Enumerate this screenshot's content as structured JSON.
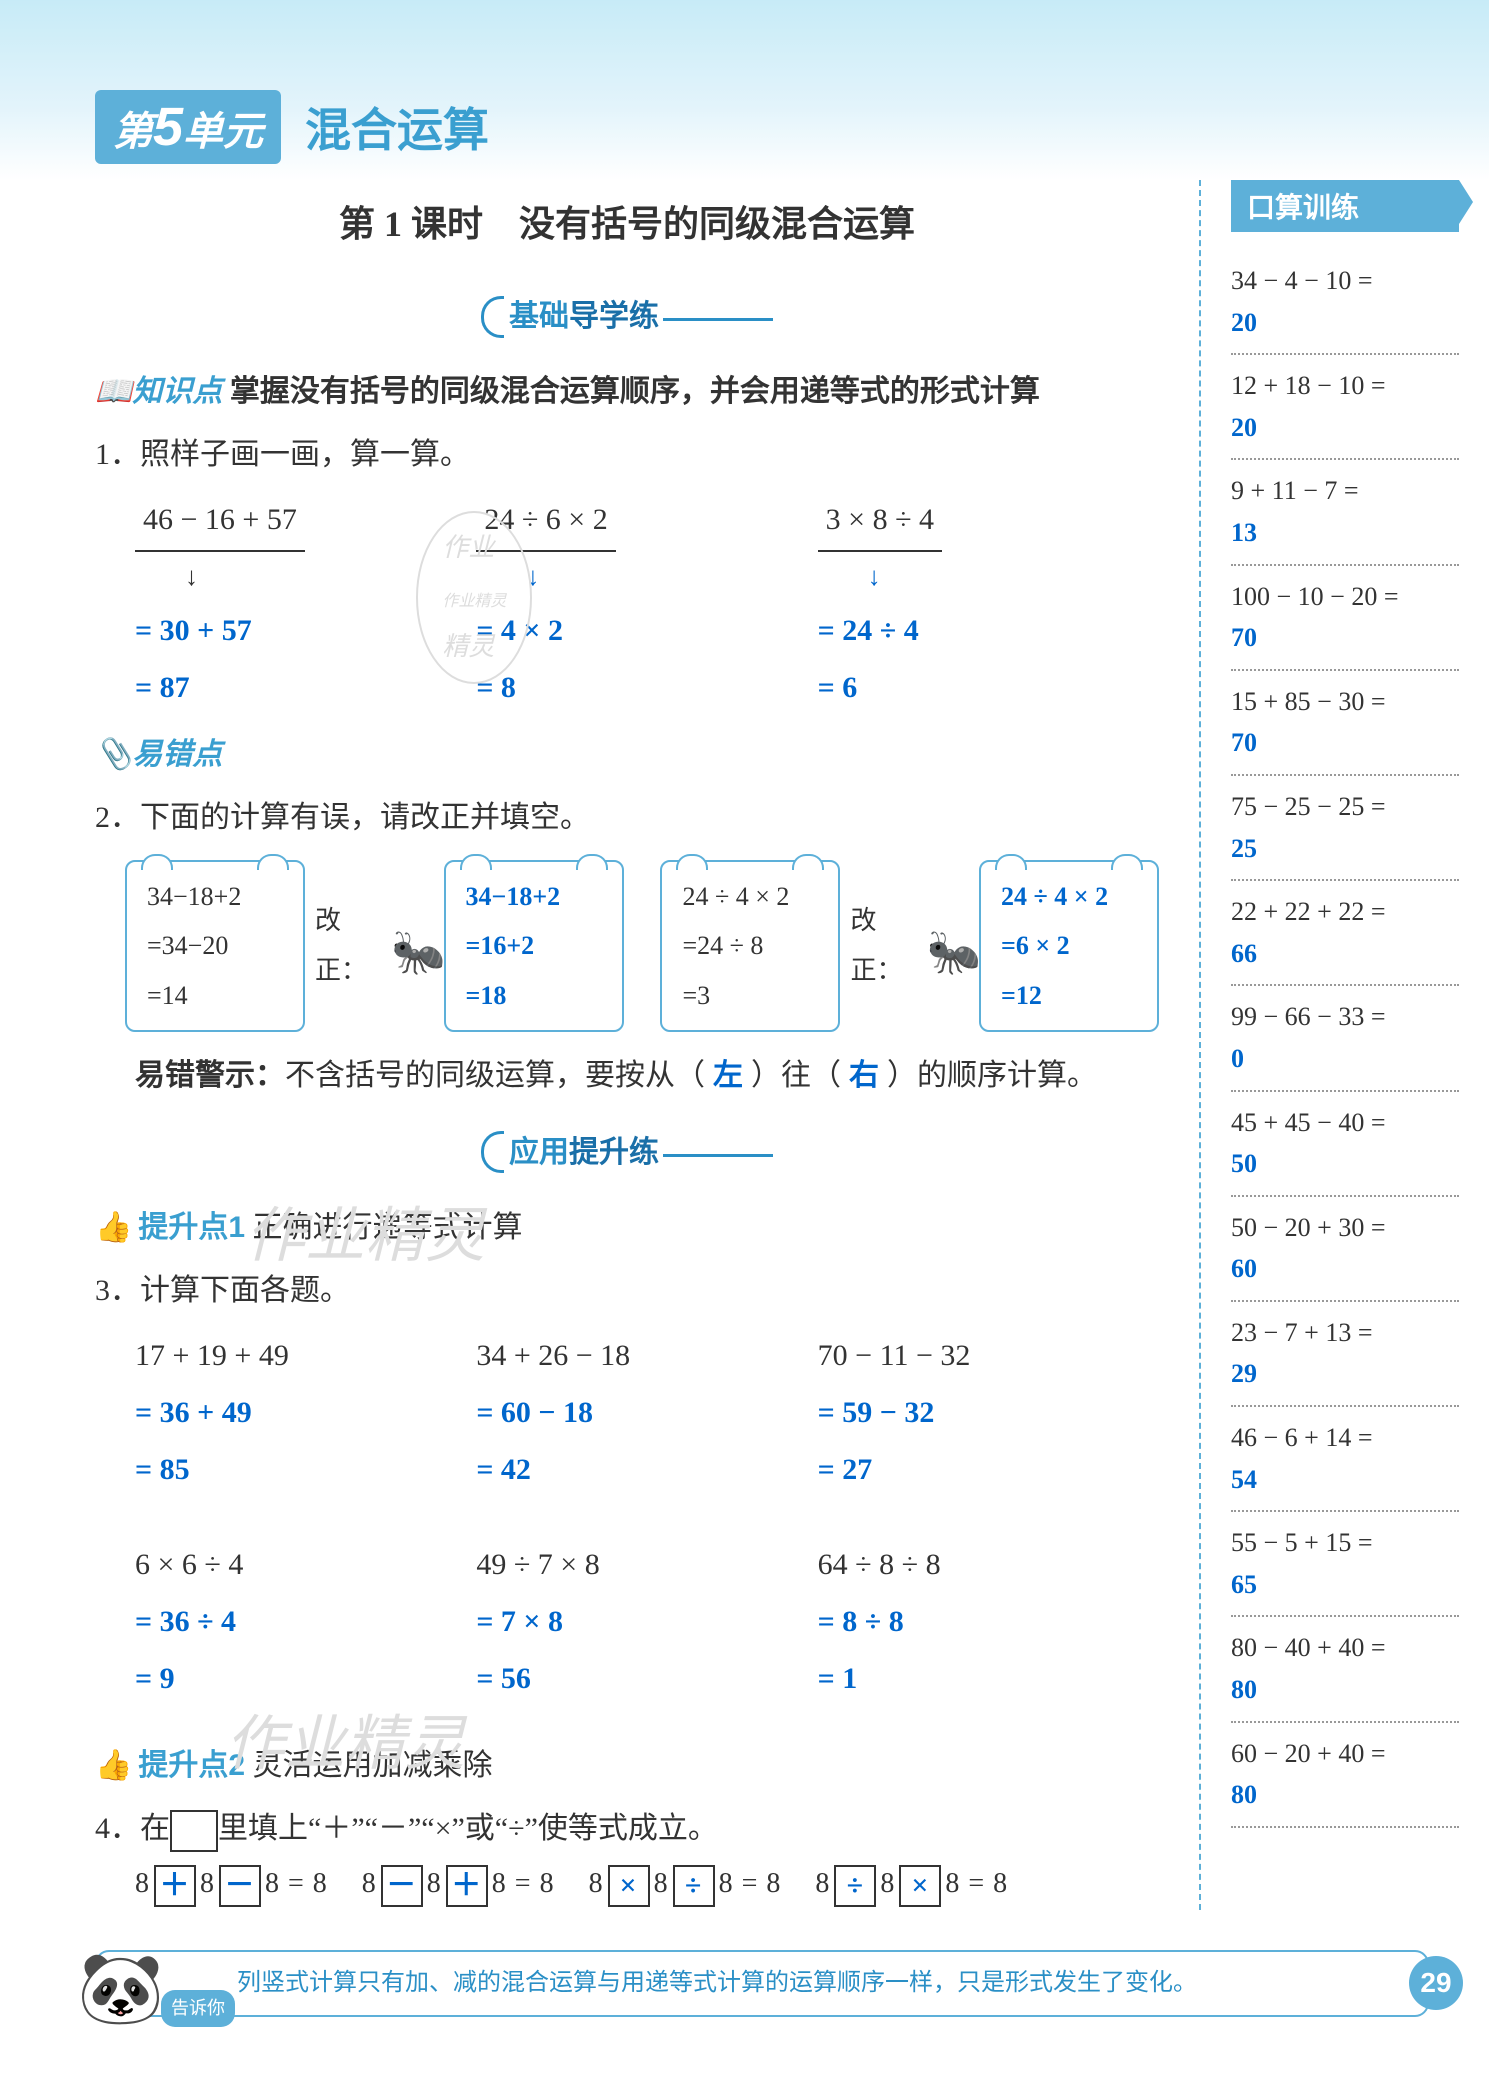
{
  "unit": {
    "badge_prefix": "第",
    "badge_num": "5",
    "badge_suffix": "单元",
    "title": "混合运算"
  },
  "lesson_title": "第 1 课时　没有括号的同级混合运算",
  "banner1_a": "基础",
  "banner1_b": "导学练",
  "kp_label": "知识点",
  "kp_text": "掌握没有括号的同级混合运算顺序，并会用递等式的形式计算",
  "q1": {
    "stem": "1．照样子画一画，算一算。",
    "cols": [
      {
        "expr": "46 − 16 + 57",
        "s1": "= 30 + 57",
        "s2": "= 87"
      },
      {
        "expr": "24 ÷ 6 × 2",
        "s1": "= 4 × 2",
        "s2": "= 8"
      },
      {
        "expr": "3 × 8 ÷ 4",
        "s1": "= 24 ÷ 4",
        "s2": "= 6"
      }
    ]
  },
  "err_label": "易错点",
  "q2": {
    "stem": "2．下面的计算有误，请改正并填空。",
    "gz": "改正：",
    "left": {
      "wrong": [
        "34−18+2",
        "=34−20",
        "=14"
      ],
      "right": [
        "34−18+2",
        "=16+2",
        "=18"
      ]
    },
    "right": {
      "wrong": [
        "24 ÷ 4 × 2",
        "=24 ÷ 8",
        "=3"
      ],
      "right": [
        "24 ÷ 4 × 2",
        "=6 × 2",
        "=12"
      ]
    },
    "warn_a": "易错警示：",
    "warn_b": "不含括号的同级运算，要按从（",
    "warn_fill1": "左",
    "warn_c": "）往（",
    "warn_fill2": "右",
    "warn_d": "）的顺序计算。"
  },
  "banner2_a": "应用",
  "banner2_b": "提升练",
  "tip1_label": "提升点1",
  "tip1_text": "正确进行递等式计算",
  "q3": {
    "stem": "3．计算下面各题。",
    "rows": [
      [
        {
          "e": "17 + 19 + 49",
          "s1": "= 36 + 49",
          "s2": "= 85"
        },
        {
          "e": "34 + 26 − 18",
          "s1": "= 60 − 18",
          "s2": "= 42"
        },
        {
          "e": "70 − 11 − 32",
          "s1": "= 59 − 32",
          "s2": "= 27"
        }
      ],
      [
        {
          "e": "6 × 6 ÷ 4",
          "s1": "= 36 ÷ 4",
          "s2": "= 9"
        },
        {
          "e": "49 ÷ 7 × 8",
          "s1": "= 7 × 8",
          "s2": "= 56"
        },
        {
          "e": "64 ÷ 8 ÷ 8",
          "s1": "= 8 ÷ 8",
          "s2": "= 1"
        }
      ]
    ]
  },
  "tip2_label": "提升点2",
  "tip2_text": "灵活运用加减乘除",
  "q4": {
    "stem_a": "4．在",
    "stem_b": "里填上“＋”“－”“×”或“÷”使等式成立。",
    "exprs": [
      {
        "a": "8",
        "op1": "＋",
        "b": "8",
        "op2": "－",
        "c": "8 = 8"
      },
      {
        "a": "8",
        "op1": "－",
        "b": "8",
        "op2": "＋",
        "c": "8 = 8"
      },
      {
        "a": "8",
        "op1": "×",
        "b": "8",
        "op2": "÷",
        "c": "8 = 8"
      },
      {
        "a": "8",
        "op1": "÷",
        "b": "8",
        "op2": "×",
        "c": "8 = 8"
      }
    ]
  },
  "sidebar": {
    "title": "口算训练",
    "items": [
      {
        "q": "34 − 4 − 10 =",
        "a": "20"
      },
      {
        "q": "12 + 18 − 10 =",
        "a": "20"
      },
      {
        "q": "9 + 11 − 7 =",
        "a": "13"
      },
      {
        "q": "100 − 10 − 20 =",
        "a": "70"
      },
      {
        "q": "15 + 85 − 30 =",
        "a": "70"
      },
      {
        "q": "75 − 25 − 25 =",
        "a": "25"
      },
      {
        "q": "22 + 22 + 22 =",
        "a": "66"
      },
      {
        "q": "99 − 66 − 33 =",
        "a": "0"
      },
      {
        "q": "45 + 45 − 40 =",
        "a": "50"
      },
      {
        "q": "50 − 20 + 30 =",
        "a": "60"
      },
      {
        "q": "23 − 7 + 13 =",
        "a": "29"
      },
      {
        "q": "46 − 6 + 14 =",
        "a": "54"
      },
      {
        "q": "55 − 5 + 15 =",
        "a": "65"
      },
      {
        "q": "80 − 40 + 40 =",
        "a": "80"
      },
      {
        "q": "60 − 20 + 40 =",
        "a": "80"
      }
    ]
  },
  "footer": {
    "bubble": "告诉你",
    "text": "列竖式计算只有加、减的混合运算与用递等式计算的运算顺序一样，只是形式发生了变化。",
    "page": "29"
  },
  "watermarks": {
    "w1": "作业",
    "w2": "作业精灵",
    "w3": "精灵",
    "w4": "作业精灵",
    "w5": "作业精灵"
  }
}
